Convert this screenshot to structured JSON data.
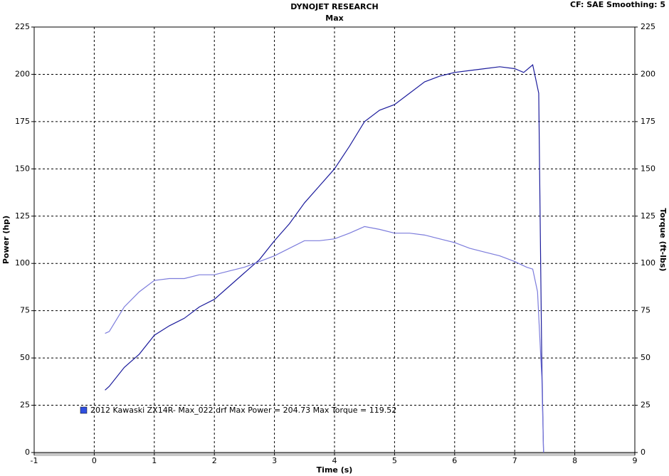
{
  "chart_data": {
    "type": "line",
    "title": "DYNOJET RESEARCH",
    "subtitle": "Max",
    "settings_text": "CF: SAE  Smoothing: 5",
    "xlabel": "Time (s)",
    "ylabel": "Power (hp)",
    "y2label": "Torque (ft-lbs)",
    "legend": "2012 Kawaski ZX14R- Max_022.drf Max Power = 204.73     Max Torque = 119.52",
    "legend_color": "#3050e0",
    "xlim": [
      -1,
      9
    ],
    "xticks": [
      -1,
      0,
      1,
      2,
      3,
      4,
      5,
      6,
      7,
      8,
      9
    ],
    "ylim": [
      0,
      225
    ],
    "yticks": [
      0,
      25,
      50,
      75,
      100,
      125,
      150,
      175,
      200,
      225
    ],
    "y2lim": [
      0,
      225
    ],
    "y2ticks": [
      0,
      25,
      50,
      75,
      100,
      125,
      150,
      175,
      200,
      225
    ],
    "grid": true,
    "series": [
      {
        "color": "#1c1c9c",
        "x": [
          0.18,
          0.25,
          0.5,
          0.75,
          1,
          1.25,
          1.5,
          1.75,
          2,
          2.25,
          2.5,
          2.75,
          3,
          3.25,
          3.5,
          3.75,
          4,
          4.25,
          4.5,
          4.75,
          5,
          5.25,
          5.5,
          5.75,
          6,
          6.25,
          6.5,
          6.75,
          7,
          7.15,
          7.3,
          7.4,
          7.45,
          7.48
        ],
        "values": [
          33,
          35,
          45,
          52,
          62,
          67,
          71,
          77,
          81,
          88,
          95,
          102,
          112,
          121,
          132,
          141,
          150,
          162,
          175,
          181,
          184,
          190,
          196,
          199,
          201,
          202,
          203,
          204,
          203,
          201,
          205,
          190,
          50,
          0
        ]
      },
      {
        "color": "#7c7cdc",
        "axis": "y2",
        "x": [
          0.18,
          0.25,
          0.5,
          0.75,
          1,
          1.25,
          1.5,
          1.75,
          2,
          2.25,
          2.5,
          2.75,
          3,
          3.25,
          3.5,
          3.75,
          4,
          4.25,
          4.5,
          4.75,
          5,
          5.25,
          5.5,
          5.75,
          6,
          6.25,
          6.5,
          6.75,
          7,
          7.2,
          7.3,
          7.38,
          7.45,
          7.48
        ],
        "values": [
          63,
          64,
          77,
          85,
          91,
          92,
          92,
          94,
          94,
          96,
          98,
          101,
          104,
          108,
          112,
          112,
          113,
          116,
          119.5,
          118,
          116,
          116,
          115,
          113,
          111,
          108,
          106,
          104,
          101,
          98,
          97,
          85,
          40,
          0
        ]
      }
    ]
  }
}
